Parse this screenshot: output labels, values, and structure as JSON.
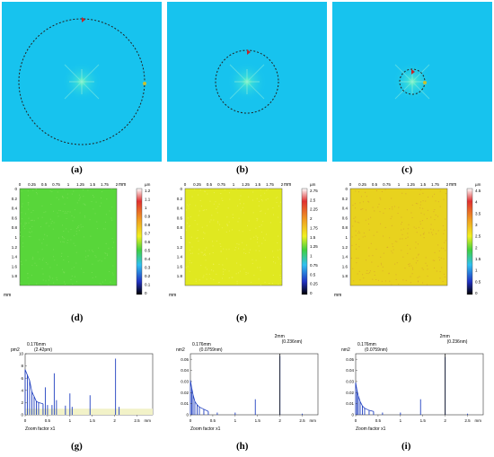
{
  "colors": {
    "fft_background": "#17c3ee",
    "map_green": "#58d63a",
    "map_yellow": "#e0e820",
    "map_yellow_orange": "#e8d21e",
    "psd_line": "#1f3fc0",
    "psd_fill": "#f2f2c8"
  },
  "fft_panels": [
    {
      "label": "(a)",
      "filter_circle_radius_mm": 0.9
    },
    {
      "label": "(b)",
      "filter_circle_radius_mm": 0.45
    },
    {
      "label": "(c)",
      "filter_circle_radius_mm": 0.18
    }
  ],
  "maps": [
    {
      "label": "(d)",
      "unit": "µm",
      "x_unit": "mm",
      "y_unit": "mm",
      "x_ticks": [
        "0",
        "0.25",
        "0.5",
        "0.75",
        "1",
        "1.25",
        "1.5",
        "1.75",
        "2"
      ],
      "y_ticks": [
        "0",
        "0.2",
        "0.4",
        "0.6",
        "0.8",
        "1",
        "1.2",
        "1.4",
        "1.6",
        "1.8"
      ],
      "colorbar_ticks": [
        "1.2",
        "1.1",
        "1",
        "0.9",
        "0.8",
        "0.7",
        "0.6",
        "0.5",
        "0.4",
        "0.3",
        "0.2",
        "0.1",
        "0"
      ]
    },
    {
      "label": "(e)",
      "unit": "µm",
      "x_unit": "mm",
      "y_unit": "mm",
      "x_ticks": [
        "0",
        "0.25",
        "0.5",
        "0.75",
        "1",
        "1.25",
        "1.5",
        "1.75",
        "2"
      ],
      "y_ticks": [
        "0",
        "0.2",
        "0.4",
        "0.6",
        "0.8",
        "1",
        "1.2",
        "1.4",
        "1.6",
        "1.8"
      ],
      "colorbar_ticks": [
        "2.75",
        "2.5",
        "2.25",
        "2",
        "1.75",
        "1.5",
        "1.25",
        "1",
        "0.75",
        "0.5",
        "0.25",
        "0"
      ]
    },
    {
      "label": "(f)",
      "unit": "µm",
      "x_unit": "mm",
      "y_unit": "mm",
      "x_ticks": [
        "0",
        "0.25",
        "0.5",
        "0.75",
        "1",
        "1.25",
        "1.5",
        "1.75",
        "2"
      ],
      "y_ticks": [
        "0",
        "0.2",
        "0.4",
        "0.6",
        "0.8",
        "1",
        "1.2",
        "1.4",
        "1.6",
        "1.8"
      ],
      "colorbar_ticks": [
        "4.5",
        "4",
        "3.5",
        "3",
        "2.5",
        "2",
        "1.5",
        "1",
        "0.5",
        "0"
      ]
    }
  ],
  "chart_data": [
    {
      "type": "line",
      "label": "(g)",
      "ylabel": "pm2",
      "xlabel": "mm",
      "annotations": [
        {
          "text": "0.176mm",
          "sub": "(2.42pm)",
          "x": 0.176,
          "y": 2.42
        }
      ],
      "footer": "Zoom factor x1",
      "xlim": [
        0,
        2.85
      ],
      "ylim": [
        0,
        10
      ],
      "x_ticks": [
        "0",
        "0.5",
        "1",
        "1.5",
        "2",
        "2.5"
      ],
      "y_ticks": [
        "0",
        "2",
        "4",
        "6",
        "8",
        "10"
      ],
      "baseline": 1.0,
      "peaks": [
        [
          0.0,
          7.4
        ],
        [
          0.05,
          6.5
        ],
        [
          0.1,
          5.6
        ],
        [
          0.15,
          3.8
        ],
        [
          0.2,
          3.0
        ],
        [
          0.25,
          2.2
        ],
        [
          0.3,
          2.0
        ],
        [
          0.4,
          1.8
        ],
        [
          0.45,
          4.5
        ],
        [
          0.5,
          1.6
        ],
        [
          0.6,
          1.6
        ],
        [
          0.65,
          6.8
        ],
        [
          0.7,
          2.4
        ],
        [
          0.9,
          1.5
        ],
        [
          1.0,
          3.5
        ],
        [
          1.05,
          1.3
        ],
        [
          1.45,
          3.2
        ],
        [
          2.02,
          9.2
        ],
        [
          2.1,
          1.3
        ]
      ]
    },
    {
      "type": "line",
      "label": "(h)",
      "ylabel": "nm2",
      "xlabel": "mm",
      "annotations": [
        {
          "text": "0.176mm",
          "sub": "(0.0759nm)",
          "x": 0.176,
          "y": 0.0759
        },
        {
          "text": "2mm",
          "sub": "(0.236nm)",
          "x": 2.0,
          "y": 0.236
        }
      ],
      "footer": "Zoom factor x1",
      "xlim": [
        0,
        2.85
      ],
      "ylim": [
        0,
        0.055
      ],
      "x_ticks": [
        "0",
        "0.5",
        "1",
        "1.5",
        "2",
        "2.5"
      ],
      "y_ticks": [
        "0",
        "0.01",
        "0.02",
        "0.03",
        "0.04",
        "0.05"
      ],
      "peaks": [
        [
          0.0,
          0.031
        ],
        [
          0.03,
          0.024
        ],
        [
          0.06,
          0.018
        ],
        [
          0.1,
          0.012
        ],
        [
          0.15,
          0.009
        ],
        [
          0.2,
          0.007
        ],
        [
          0.3,
          0.005
        ],
        [
          0.4,
          0.003
        ],
        [
          0.6,
          0.002
        ],
        [
          1.0,
          0.002
        ],
        [
          1.45,
          0.014
        ],
        [
          2.0,
          0.053
        ],
        [
          2.5,
          0.001
        ]
      ]
    },
    {
      "type": "line",
      "label": "(i)",
      "ylabel": "nm2",
      "xlabel": "mm",
      "annotations": [
        {
          "text": "0.176mm",
          "sub": "(0.0759nm)",
          "x": 0.176,
          "y": 0.0759
        },
        {
          "text": "2mm",
          "sub": "(0.236nm)",
          "x": 2.0,
          "y": 0.236
        }
      ],
      "footer": "Zoom factor x1",
      "xlim": [
        0,
        2.85
      ],
      "ylim": [
        0,
        0.055
      ],
      "x_ticks": [
        "0",
        "0.5",
        "1",
        "1.5",
        "2",
        "2.5"
      ],
      "y_ticks": [
        "0",
        "0.01",
        "0.02",
        "0.03",
        "0.04",
        "0.05"
      ],
      "peaks": [
        [
          0.0,
          0.029
        ],
        [
          0.03,
          0.022
        ],
        [
          0.06,
          0.017
        ],
        [
          0.1,
          0.012
        ],
        [
          0.15,
          0.008
        ],
        [
          0.2,
          0.006
        ],
        [
          0.3,
          0.004
        ],
        [
          0.4,
          0.003
        ],
        [
          0.6,
          0.002
        ],
        [
          1.0,
          0.002
        ],
        [
          1.45,
          0.014
        ],
        [
          2.0,
          0.052
        ],
        [
          2.5,
          0.001
        ]
      ]
    }
  ]
}
